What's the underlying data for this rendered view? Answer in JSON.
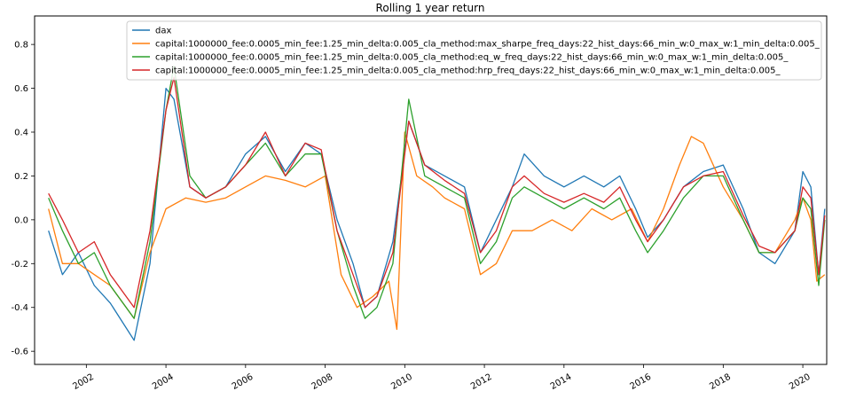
{
  "chart_data": {
    "type": "line",
    "title": "Rolling 1 year return",
    "xlabel": "",
    "ylabel": "",
    "xlim": [
      2000.7,
      2020.6
    ],
    "ylim": [
      -0.66,
      0.93
    ],
    "xticks": [
      2002,
      2004,
      2006,
      2008,
      2010,
      2012,
      2014,
      2016,
      2018,
      2020
    ],
    "xtick_labels": [
      "2002",
      "2004",
      "2006",
      "2008",
      "2010",
      "2012",
      "2014",
      "2016",
      "2018",
      "2020"
    ],
    "yticks": [
      -0.6,
      -0.4,
      -0.2,
      0.0,
      0.2,
      0.4,
      0.6,
      0.8
    ],
    "ytick_labels": [
      "-0.6",
      "-0.4",
      "-0.2",
      "0.0",
      "0.2",
      "0.4",
      "0.6",
      "0.8"
    ],
    "grid": false,
    "legend_position": "top-right",
    "series": [
      {
        "name": "dax",
        "color": "#1f77b4",
        "x": [
          2001.05,
          2001.4,
          2001.8,
          2002.2,
          2002.6,
          2003.2,
          2003.6,
          2004.0,
          2004.2,
          2004.6,
          2005.0,
          2005.5,
          2006.0,
          2006.5,
          2007.0,
          2007.5,
          2007.9,
          2008.3,
          2008.7,
          2009.0,
          2009.3,
          2009.7,
          2010.1,
          2010.5,
          2011.0,
          2011.5,
          2011.9,
          2012.3,
          2012.7,
          2013.0,
          2013.5,
          2014.0,
          2014.5,
          2015.0,
          2015.4,
          2015.8,
          2016.1,
          2016.5,
          2017.0,
          2017.5,
          2018.0,
          2018.5,
          2018.9,
          2019.3,
          2019.8,
          2020.0,
          2020.2,
          2020.4,
          2020.55
        ],
        "y": [
          -0.05,
          -0.25,
          -0.15,
          -0.3,
          -0.38,
          -0.55,
          -0.2,
          0.6,
          0.55,
          0.15,
          0.1,
          0.15,
          0.3,
          0.38,
          0.22,
          0.35,
          0.3,
          0.0,
          -0.2,
          -0.4,
          -0.35,
          -0.1,
          0.45,
          0.25,
          0.2,
          0.15,
          -0.15,
          0.0,
          0.15,
          0.3,
          0.2,
          0.15,
          0.2,
          0.15,
          0.2,
          0.05,
          -0.08,
          0.0,
          0.15,
          0.22,
          0.25,
          0.05,
          -0.15,
          -0.2,
          -0.05,
          0.22,
          0.15,
          -0.25,
          0.05
        ]
      },
      {
        "name": "capital:1000000_fee:0.0005_min_fee:1.25_min_delta:0.005_cla_method:max_sharpe_freq_days:22_hist_days:66_min_w:0_max_w:1_min_delta:0.005_",
        "color": "#ff7f0e",
        "x": [
          2001.05,
          2001.4,
          2001.8,
          2002.2,
          2002.6,
          2003.2,
          2003.6,
          2004.0,
          2004.5,
          2005.0,
          2005.5,
          2006.0,
          2006.5,
          2007.0,
          2007.5,
          2008.0,
          2008.4,
          2008.8,
          2009.2,
          2009.6,
          2009.8,
          2010.0,
          2010.3,
          2010.7,
          2011.0,
          2011.5,
          2011.9,
          2012.3,
          2012.7,
          2013.2,
          2013.7,
          2014.2,
          2014.7,
          2015.2,
          2015.7,
          2016.1,
          2016.5,
          2016.9,
          2017.2,
          2017.5,
          2018.0,
          2018.5,
          2018.9,
          2019.3,
          2019.8,
          2020.0,
          2020.2,
          2020.35,
          2020.55
        ],
        "y": [
          0.05,
          -0.2,
          -0.2,
          -0.25,
          -0.3,
          -0.45,
          -0.15,
          0.05,
          0.1,
          0.08,
          0.1,
          0.15,
          0.2,
          0.18,
          0.15,
          0.2,
          -0.25,
          -0.4,
          -0.35,
          -0.28,
          -0.5,
          0.4,
          0.2,
          0.15,
          0.1,
          0.05,
          -0.25,
          -0.2,
          -0.05,
          -0.05,
          0.0,
          -0.05,
          0.05,
          0.0,
          0.05,
          -0.1,
          0.05,
          0.25,
          0.38,
          0.35,
          0.15,
          0.0,
          -0.15,
          -0.15,
          0.0,
          0.1,
          0.0,
          -0.28,
          -0.25
        ]
      },
      {
        "name": "capital:1000000_fee:0.0005_min_fee:1.25_min_delta:0.005_cla_method:eq_w_freq_days:22_hist_days:66_min_w:0_max_w:1_min_delta:0.005_",
        "color": "#2ca02c",
        "x": [
          2001.05,
          2001.4,
          2001.8,
          2002.2,
          2002.6,
          2003.2,
          2003.6,
          2004.0,
          2004.2,
          2004.6,
          2005.0,
          2005.5,
          2006.0,
          2006.5,
          2007.0,
          2007.5,
          2007.9,
          2008.3,
          2008.7,
          2009.0,
          2009.3,
          2009.7,
          2010.1,
          2010.5,
          2011.0,
          2011.5,
          2011.9,
          2012.3,
          2012.7,
          2013.0,
          2013.5,
          2014.0,
          2014.5,
          2015.0,
          2015.4,
          2015.8,
          2016.1,
          2016.5,
          2017.0,
          2017.5,
          2018.0,
          2018.5,
          2018.9,
          2019.3,
          2019.8,
          2020.0,
          2020.2,
          2020.4,
          2020.55
        ],
        "y": [
          0.1,
          -0.05,
          -0.2,
          -0.15,
          -0.3,
          -0.45,
          -0.1,
          0.5,
          0.7,
          0.2,
          0.1,
          0.15,
          0.25,
          0.35,
          0.2,
          0.3,
          0.3,
          -0.05,
          -0.3,
          -0.45,
          -0.4,
          -0.2,
          0.55,
          0.2,
          0.15,
          0.1,
          -0.2,
          -0.1,
          0.1,
          0.15,
          0.1,
          0.05,
          0.1,
          0.05,
          0.1,
          -0.05,
          -0.15,
          -0.05,
          0.1,
          0.2,
          0.2,
          0.0,
          -0.15,
          -0.15,
          -0.05,
          0.1,
          0.05,
          -0.3,
          0.0
        ]
      },
      {
        "name": "capital:1000000_fee:0.0005_min_fee:1.25_min_delta:0.005_cla_method:hrp_freq_days:22_hist_days:66_min_w:0_max_w:1_min_delta:0.005_",
        "color": "#d62728",
        "x": [
          2001.05,
          2001.4,
          2001.8,
          2002.2,
          2002.6,
          2003.2,
          2003.6,
          2004.0,
          2004.2,
          2004.6,
          2005.0,
          2005.5,
          2006.0,
          2006.5,
          2007.0,
          2007.5,
          2007.9,
          2008.3,
          2008.7,
          2009.0,
          2009.3,
          2009.7,
          2010.1,
          2010.5,
          2011.0,
          2011.5,
          2011.9,
          2012.3,
          2012.7,
          2013.0,
          2013.5,
          2014.0,
          2014.5,
          2015.0,
          2015.4,
          2015.8,
          2016.1,
          2016.5,
          2017.0,
          2017.5,
          2018.0,
          2018.5,
          2018.9,
          2019.3,
          2019.8,
          2020.0,
          2020.2,
          2020.4,
          2020.55
        ],
        "y": [
          0.12,
          0.0,
          -0.15,
          -0.1,
          -0.25,
          -0.4,
          -0.05,
          0.5,
          0.65,
          0.15,
          0.1,
          0.15,
          0.25,
          0.4,
          0.2,
          0.35,
          0.32,
          -0.05,
          -0.25,
          -0.4,
          -0.35,
          -0.15,
          0.45,
          0.25,
          0.18,
          0.12,
          -0.15,
          -0.05,
          0.15,
          0.2,
          0.12,
          0.08,
          0.12,
          0.08,
          0.15,
          0.0,
          -0.1,
          0.0,
          0.15,
          0.2,
          0.22,
          0.02,
          -0.12,
          -0.15,
          -0.05,
          0.15,
          0.1,
          -0.25,
          0.02
        ]
      }
    ]
  }
}
